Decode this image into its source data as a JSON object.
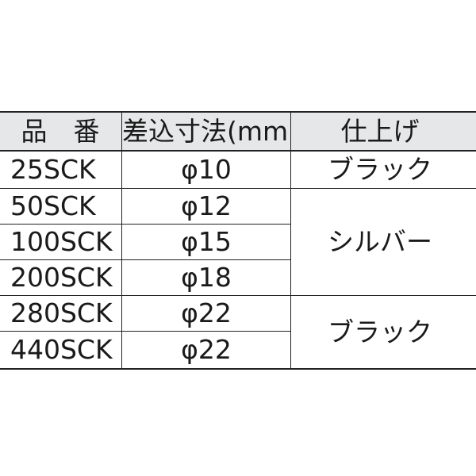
{
  "table": {
    "headers": [
      "品　番",
      "差込寸法(mm)",
      "仕上げ"
    ],
    "rows": [
      {
        "part": "25SCK",
        "size": "φ10",
        "finish": "ブラック"
      },
      {
        "part": "50SCK",
        "size": "φ12",
        "finish": "シルバー"
      },
      {
        "part": "100SCK",
        "size": "φ15"
      },
      {
        "part": "200SCK",
        "size": "φ18"
      },
      {
        "part": "280SCK",
        "size": "φ22",
        "finish": "ブラック"
      },
      {
        "part": "440SCK",
        "size": "φ22"
      }
    ]
  }
}
